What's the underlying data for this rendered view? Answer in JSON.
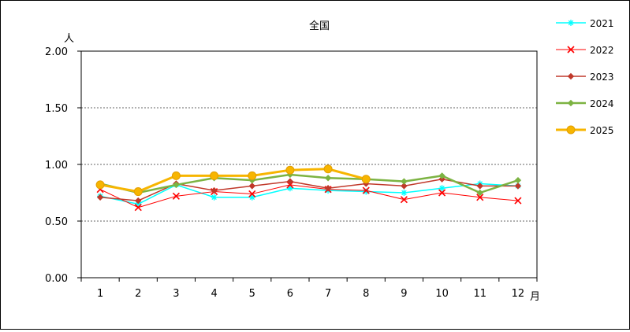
{
  "chart_data": {
    "type": "line",
    "title": "全国",
    "ylabel": "人",
    "xlabel": "月",
    "categories": [
      "1",
      "2",
      "3",
      "4",
      "5",
      "6",
      "7",
      "8",
      "9",
      "10",
      "11",
      "12"
    ],
    "ylim": [
      0,
      2.0
    ],
    "yticks": [
      "0.00",
      "0.50",
      "1.00",
      "1.50",
      "2.00"
    ],
    "ytick_values": [
      0,
      0.5,
      1.0,
      1.5,
      2.0
    ],
    "grid": true,
    "legend_position": "right",
    "series": [
      {
        "name": "2021",
        "color": "#00FFFF",
        "marker": "asterisk",
        "values": [
          0.72,
          0.65,
          0.82,
          0.71,
          0.71,
          0.79,
          0.77,
          0.76,
          0.75,
          0.79,
          0.83,
          0.81
        ]
      },
      {
        "name": "2022",
        "color": "#FF0000",
        "marker": "x",
        "values": [
          0.78,
          0.62,
          0.72,
          0.76,
          0.74,
          0.82,
          0.78,
          0.77,
          0.69,
          0.75,
          0.71,
          0.68
        ]
      },
      {
        "name": "2023",
        "color": "#C0392B",
        "marker": "diamond",
        "values": [
          0.71,
          0.68,
          0.83,
          0.77,
          0.81,
          0.85,
          0.79,
          0.83,
          0.81,
          0.87,
          0.81,
          0.81
        ]
      },
      {
        "name": "2024",
        "color": "#7CB342",
        "marker": "diamond",
        "values": [
          0.83,
          0.75,
          0.82,
          0.88,
          0.86,
          0.91,
          0.88,
          0.87,
          0.85,
          0.9,
          0.75,
          0.86
        ]
      },
      {
        "name": "2025",
        "color": "#F7B500",
        "marker": "circle",
        "values": [
          0.82,
          0.76,
          0.9,
          0.9,
          0.9,
          0.95,
          0.96,
          0.87,
          null,
          null,
          null,
          null
        ]
      }
    ]
  }
}
